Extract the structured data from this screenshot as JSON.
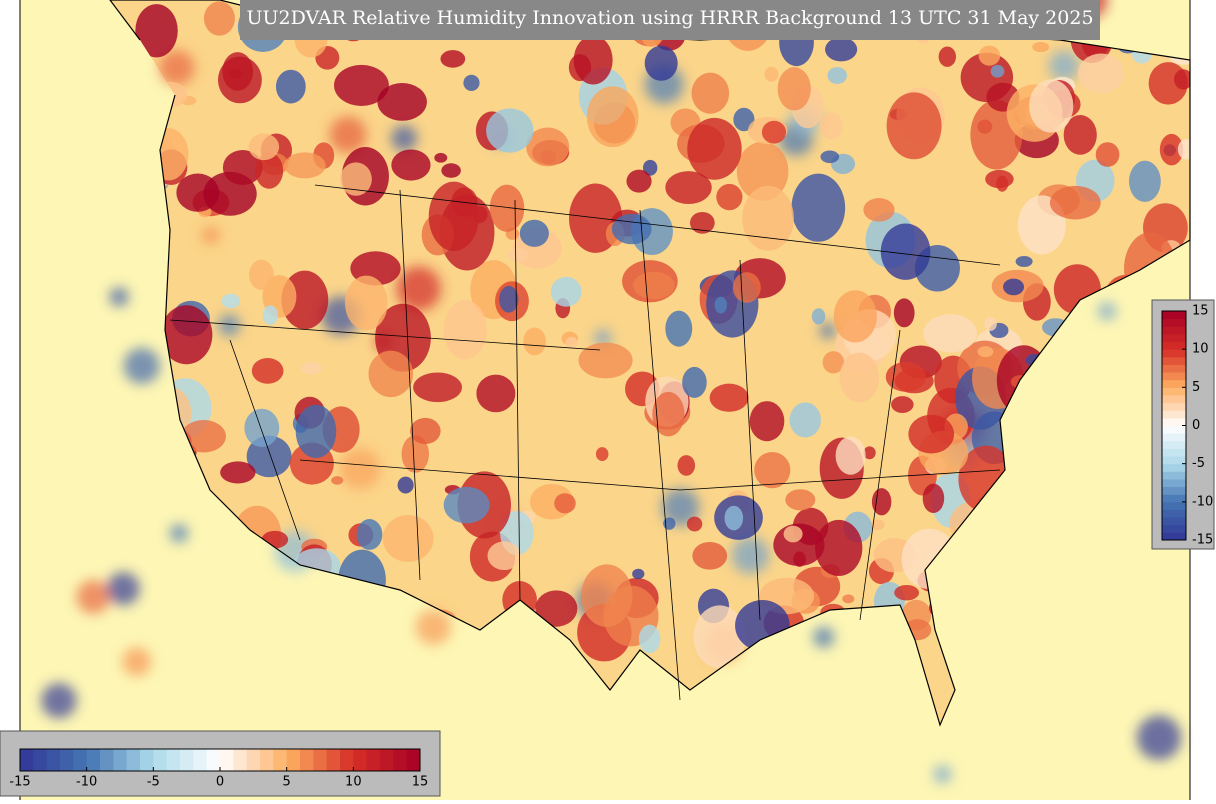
{
  "title": "UU2DVAR Relative Humidity Innovation using HRRR Background 13 UTC 31 May 2025",
  "colorbar_right": {
    "lim": [
      -15,
      15
    ],
    "ticks": [
      15,
      10,
      5,
      0,
      -5,
      -10,
      -15
    ]
  },
  "colorbar_bottom": {
    "lim": [
      -15,
      15
    ],
    "ticks": [
      -15,
      -10,
      -5,
      0,
      5,
      10,
      15
    ]
  }
}
